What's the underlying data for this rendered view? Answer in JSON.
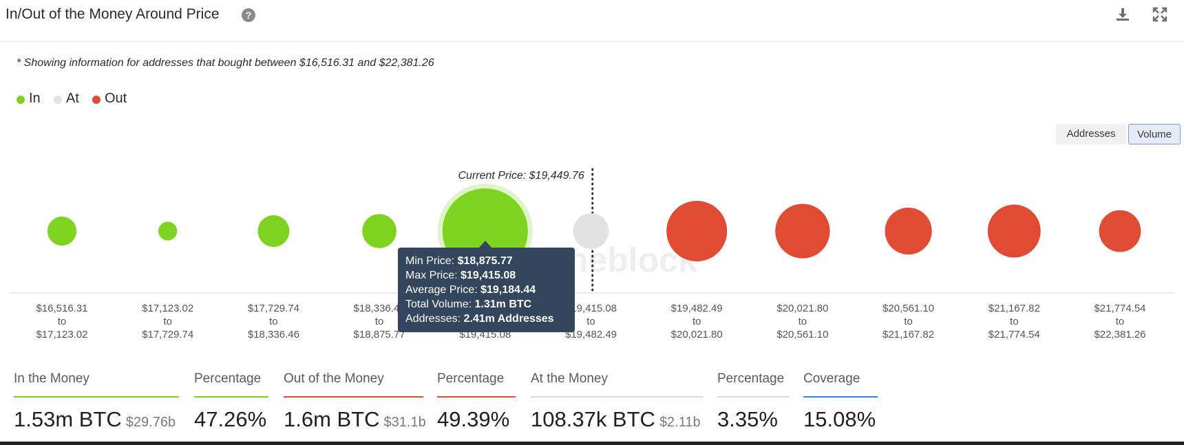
{
  "header": {
    "title": "In/Out of the Money Around Price",
    "help_icon": "question-circle-icon",
    "download_icon": "download-icon",
    "expand_icon": "expand-icon"
  },
  "note": "* Showing information for addresses that bought between $16,516.31 and $22,381.26",
  "legend": [
    {
      "label": "In",
      "color": "#7ed321"
    },
    {
      "label": "At",
      "color": "#e2e2e2"
    },
    {
      "label": "Out",
      "color": "#e04b34"
    }
  ],
  "toggle": {
    "addresses_label": "Addresses",
    "volume_label": "Volume",
    "active": "Volume"
  },
  "current_price_label": "Current Price: $19,449.76",
  "watermark": "theblock",
  "chart_data": {
    "type": "bubble",
    "title": "In/Out of the Money Around Price",
    "colors": {
      "In": "#7ed321",
      "At": "#e2e2e2",
      "Out": "#e04b34"
    },
    "current_price": 19449.76,
    "highlighted_index": 4,
    "series": [
      {
        "range_from": "$16,516.31",
        "range_to": "$17,123.02",
        "status": "In",
        "relative_size": 0.34
      },
      {
        "range_from": "$17,123.02",
        "range_to": "$17,729.74",
        "status": "In",
        "relative_size": 0.22
      },
      {
        "range_from": "$17,729.74",
        "range_to": "$18,336.46",
        "status": "In",
        "relative_size": 0.37
      },
      {
        "range_from": "$18,336.46",
        "range_to": "$18,875.77",
        "status": "In",
        "relative_size": 0.4
      },
      {
        "range_from": "$18,875.77",
        "range_to": "$19,415.08",
        "status": "In",
        "relative_size": 1.0
      },
      {
        "range_from": "$19,415.08",
        "range_to": "$19,482.49",
        "status": "At",
        "relative_size": 0.42
      },
      {
        "range_from": "$19,482.49",
        "range_to": "$20,021.80",
        "status": "Out",
        "relative_size": 0.71
      },
      {
        "range_from": "$20,021.80",
        "range_to": "$20,561.10",
        "status": "Out",
        "relative_size": 0.64
      },
      {
        "range_from": "$20,561.10",
        "range_to": "$21,167.82",
        "status": "Out",
        "relative_size": 0.55
      },
      {
        "range_from": "$21,167.82",
        "range_to": "$21,774.54",
        "status": "Out",
        "relative_size": 0.62
      },
      {
        "range_from": "$21,774.54",
        "range_to": "$22,381.26",
        "status": "Out",
        "relative_size": 0.49
      }
    ],
    "range_joiner": "to"
  },
  "tooltip": {
    "min_price_label": "Min Price:",
    "min_price": "$18,875.77",
    "max_price_label": "Max Price:",
    "max_price": "$19,415.08",
    "avg_price_label": "Average Price:",
    "avg_price": "$19,184.44",
    "volume_label": "Total Volume:",
    "volume": "1.31m BTC",
    "addresses_label": "Addresses:",
    "addresses": "2.41m Addresses"
  },
  "stats": [
    {
      "label": "In the Money",
      "value": "1.53m BTC",
      "sub": "$29.76b",
      "color": "#7ed321"
    },
    {
      "label": "Percentage",
      "value": "47.26%",
      "sub": "",
      "color": "#7ed321"
    },
    {
      "label": "Out of the Money",
      "value": "1.6m BTC",
      "sub": "$31.1b",
      "color": "#e04b34"
    },
    {
      "label": "Percentage",
      "value": "49.39%",
      "sub": "",
      "color": "#e04b34"
    },
    {
      "label": "At the Money",
      "value": "108.37k BTC",
      "sub": "$2.11b",
      "color": "#d9d9d9"
    },
    {
      "label": "Percentage",
      "value": "3.35%",
      "sub": "",
      "color": "#d9d9d9"
    },
    {
      "label": "Coverage",
      "value": "15.08%",
      "sub": "",
      "color": "#3b7ddd"
    }
  ]
}
